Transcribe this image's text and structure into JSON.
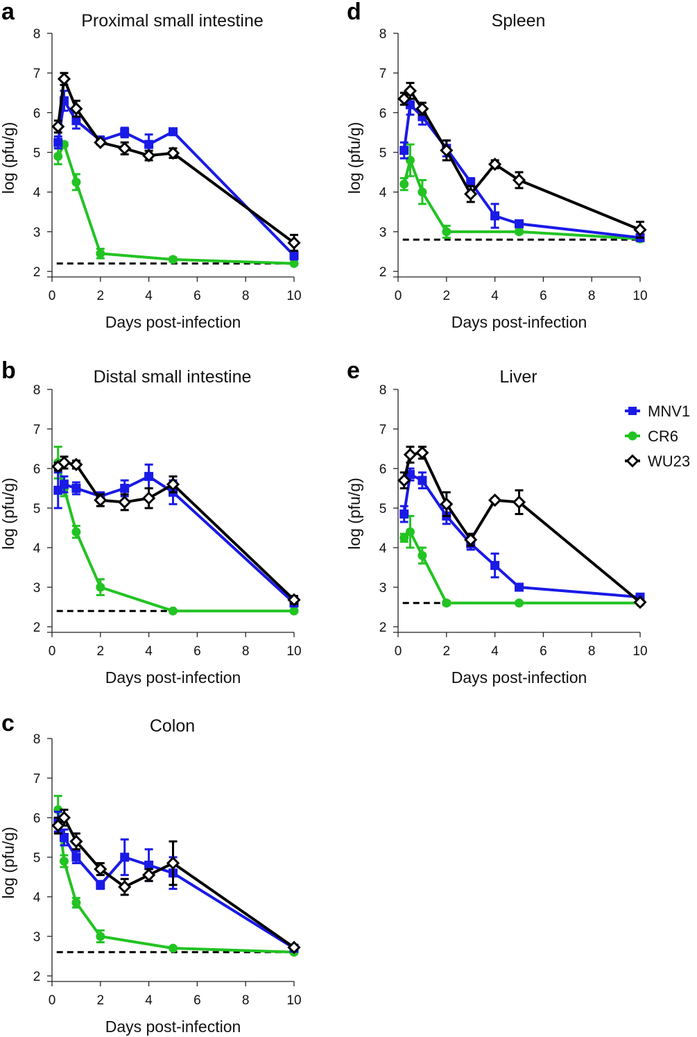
{
  "chart_data": [
    {
      "panel": "a",
      "type": "line",
      "title": "Proximal small intestine",
      "xlabel": "Days post-infection",
      "ylabel": "log (pfu/g)",
      "xlim": [
        0,
        10
      ],
      "ylim": [
        2,
        8
      ],
      "xticks": [
        0,
        2,
        4,
        6,
        8,
        10
      ],
      "yticks": [
        2,
        3,
        4,
        5,
        6,
        7,
        8
      ],
      "limit_of_detection": 2.2,
      "series": [
        {
          "name": "MNV1",
          "x": [
            0.25,
            0.5,
            1,
            2,
            3,
            4,
            5,
            10
          ],
          "y": [
            5.25,
            6.3,
            5.8,
            5.3,
            5.5,
            5.2,
            5.52,
            2.4
          ],
          "err": [
            0.15,
            0.25,
            0.2,
            0.1,
            0.12,
            0.25,
            0.06,
            0.1
          ]
        },
        {
          "name": "CR6",
          "x": [
            0.25,
            0.5,
            1,
            2,
            5,
            10
          ],
          "y": [
            4.9,
            5.2,
            4.25,
            2.45,
            2.3,
            2.2
          ],
          "err": [
            0.2,
            0.05,
            0.2,
            0.12,
            0.05,
            0.03
          ]
        },
        {
          "name": "WU23",
          "x": [
            0.25,
            0.5,
            1,
            2,
            3,
            4,
            5,
            10
          ],
          "y": [
            5.65,
            6.85,
            6.1,
            5.25,
            5.1,
            4.92,
            4.98,
            2.72
          ],
          "err": [
            0.15,
            0.15,
            0.2,
            0.05,
            0.15,
            0.12,
            0.12,
            0.2
          ]
        }
      ]
    },
    {
      "panel": "b",
      "type": "line",
      "title": "Distal small intestine",
      "xlabel": "Days post-infection",
      "ylabel": "log (pfu/g)",
      "xlim": [
        0,
        10
      ],
      "ylim": [
        2,
        8
      ],
      "xticks": [
        0,
        2,
        4,
        6,
        8,
        10
      ],
      "yticks": [
        2,
        3,
        4,
        5,
        6,
        7,
        8
      ],
      "limit_of_detection": 2.4,
      "series": [
        {
          "name": "MNV1",
          "x": [
            0.25,
            0.5,
            1,
            2,
            3,
            4,
            5,
            10
          ],
          "y": [
            5.45,
            5.6,
            5.5,
            5.3,
            5.5,
            5.8,
            5.4,
            2.6
          ],
          "err": [
            0.45,
            0.2,
            0.15,
            0.1,
            0.2,
            0.3,
            0.3,
            0.05
          ]
        },
        {
          "name": "CR6",
          "x": [
            0.25,
            0.5,
            1,
            2,
            5,
            10
          ],
          "y": [
            6.15,
            5.5,
            4.4,
            3.0,
            2.4,
            2.4
          ],
          "err": [
            0.4,
            0.2,
            0.15,
            0.2,
            0.03,
            0.03
          ]
        },
        {
          "name": "WU23",
          "x": [
            0.25,
            0.5,
            1,
            2,
            3,
            4,
            5,
            10
          ],
          "y": [
            6.05,
            6.15,
            6.1,
            5.2,
            5.15,
            5.25,
            5.6,
            2.68
          ],
          "err": [
            0.1,
            0.15,
            0.1,
            0.15,
            0.2,
            0.25,
            0.2,
            0.1
          ]
        }
      ]
    },
    {
      "panel": "c",
      "type": "line",
      "title": "Colon",
      "xlabel": "Days post-infection",
      "ylabel": "log (pfu/g)",
      "xlim": [
        0,
        10
      ],
      "ylim": [
        2,
        8
      ],
      "xticks": [
        0,
        2,
        4,
        6,
        8,
        10
      ],
      "yticks": [
        2,
        3,
        4,
        5,
        6,
        7,
        8
      ],
      "limit_of_detection": 2.6,
      "series": [
        {
          "name": "MNV1",
          "x": [
            0.25,
            0.5,
            1,
            2,
            3,
            4,
            5,
            10
          ],
          "y": [
            5.9,
            5.5,
            5.0,
            4.3,
            5.0,
            4.8,
            4.6,
            2.7
          ],
          "err": [
            0.25,
            0.2,
            0.15,
            0.1,
            0.45,
            0.4,
            0.4,
            0.05
          ]
        },
        {
          "name": "CR6",
          "x": [
            0.25,
            0.5,
            1,
            2,
            5,
            10
          ],
          "y": [
            6.2,
            4.9,
            3.85,
            3.0,
            2.7,
            2.6
          ],
          "err": [
            0.35,
            0.15,
            0.12,
            0.15,
            0.03,
            0.03
          ]
        },
        {
          "name": "WU23",
          "x": [
            0.25,
            0.5,
            1,
            2,
            3,
            4,
            5,
            10
          ],
          "y": [
            5.8,
            6.0,
            5.4,
            4.7,
            4.25,
            4.55,
            4.85,
            2.72
          ],
          "err": [
            0.2,
            0.2,
            0.2,
            0.15,
            0.2,
            0.15,
            0.55,
            0.05
          ]
        }
      ]
    },
    {
      "panel": "d",
      "type": "line",
      "title": "Spleen",
      "xlabel": "Days post-infection",
      "ylabel": "log (pfu/g)",
      "xlim": [
        0,
        10
      ],
      "ylim": [
        2,
        8
      ],
      "xticks": [
        0,
        2,
        4,
        6,
        8,
        10
      ],
      "yticks": [
        2,
        3,
        4,
        5,
        6,
        7,
        8
      ],
      "limit_of_detection": 2.8,
      "series": [
        {
          "name": "MNV1",
          "x": [
            0.25,
            0.5,
            1,
            2,
            3,
            4,
            5,
            10
          ],
          "y": [
            5.05,
            6.2,
            5.9,
            5.1,
            4.25,
            3.4,
            3.2,
            2.85
          ],
          "err": [
            0.2,
            0.25,
            0.2,
            0.2,
            0.1,
            0.3,
            0.05,
            0.05
          ]
        },
        {
          "name": "CR6",
          "x": [
            0.25,
            0.5,
            1,
            2,
            5,
            10
          ],
          "y": [
            4.2,
            4.8,
            4.0,
            3.0,
            3.0,
            2.82
          ],
          "err": [
            0.15,
            0.4,
            0.3,
            0.15,
            0.05,
            0.03
          ]
        },
        {
          "name": "WU23",
          "x": [
            0.25,
            0.5,
            1,
            2,
            3,
            4,
            5,
            10
          ],
          "y": [
            6.35,
            6.55,
            6.1,
            5.05,
            3.95,
            4.7,
            4.3,
            3.05
          ],
          "err": [
            0.15,
            0.2,
            0.15,
            0.25,
            0.2,
            0.1,
            0.2,
            0.2
          ]
        }
      ]
    },
    {
      "panel": "e",
      "type": "line",
      "title": "Liver",
      "xlabel": "Days post-infection",
      "ylabel": "log (pfu/g)",
      "xlim": [
        0,
        10
      ],
      "ylim": [
        2,
        8
      ],
      "xticks": [
        0,
        2,
        4,
        6,
        8,
        10
      ],
      "yticks": [
        2,
        3,
        4,
        5,
        6,
        7,
        8
      ],
      "limit_of_detection": 2.6,
      "series": [
        {
          "name": "MNV1",
          "x": [
            0.25,
            0.5,
            1,
            2,
            3,
            4,
            5,
            10
          ],
          "y": [
            4.85,
            5.85,
            5.7,
            4.8,
            4.1,
            3.55,
            3.0,
            2.75
          ],
          "err": [
            0.2,
            0.15,
            0.2,
            0.2,
            0.15,
            0.3,
            0.05,
            0.05
          ]
        },
        {
          "name": "CR6",
          "x": [
            0.25,
            0.5,
            1,
            2,
            5,
            10
          ],
          "y": [
            4.25,
            4.4,
            3.8,
            2.6,
            2.6,
            2.6
          ],
          "err": [
            0.1,
            0.4,
            0.2,
            0.05,
            0.03,
            0.03
          ]
        },
        {
          "name": "WU23",
          "x": [
            0.25,
            0.5,
            1,
            2,
            3,
            4,
            5,
            10
          ],
          "y": [
            5.7,
            6.35,
            6.4,
            5.1,
            4.2,
            5.2,
            5.15,
            2.62
          ],
          "err": [
            0.2,
            0.2,
            0.15,
            0.3,
            0.15,
            0.05,
            0.3,
            0.05
          ]
        }
      ]
    }
  ],
  "legend": {
    "position": "right of panel e",
    "items": [
      {
        "name": "MNV1",
        "marker": "square",
        "color": "#1a1ae6"
      },
      {
        "name": "CR6",
        "marker": "circle",
        "color": "#22c322"
      },
      {
        "name": "WU23",
        "marker": "diamond-open",
        "color": "#000000"
      }
    ]
  },
  "colors": {
    "MNV1": "#1a1ae6",
    "CR6": "#22c322",
    "WU23": "#000000",
    "lod": "#000000"
  }
}
